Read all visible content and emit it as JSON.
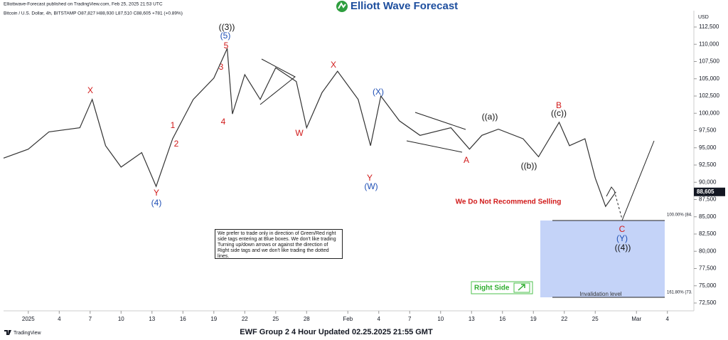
{
  "header": {
    "published": "Elliottwave-Forecast published on TradingView.com, Feb 25, 2025 21:53 UTC",
    "logo": "Elliott Wave Forecast"
  },
  "chart_data": {
    "type": "line",
    "symbol": "Bitcoin / U.S. Dollar, 4h, BITSTAMP O87,827 H88,930 L87,510 C88,605 +781 (+0.89%)",
    "currency": "USD",
    "x": [
      -2.4,
      0,
      2,
      5,
      6.2,
      7.5,
      9,
      11,
      12.4,
      14,
      16,
      18,
      19.3,
      19.8,
      21,
      22.5,
      24,
      26,
      27,
      28.5,
      30,
      32,
      33.2,
      34.2,
      36,
      38,
      41,
      42.8,
      44,
      45.6,
      48,
      49.5,
      51.5,
      52.5,
      54,
      55,
      56,
      57
    ],
    "values": [
      93500,
      94800,
      97300,
      97900,
      102000,
      95300,
      92200,
      94300,
      89400,
      96300,
      102000,
      105100,
      109400,
      99900,
      105600,
      102000,
      106600,
      104600,
      97900,
      103000,
      106100,
      102000,
      95300,
      102500,
      98900,
      96800,
      97900,
      94800,
      96800,
      97700,
      96300,
      93700,
      98700,
      95300,
      96300,
      90600,
      86500,
      88605
    ],
    "color": "#333333",
    "xlim": [
      -2.4,
      64.5
    ],
    "ylim": [
      71470,
      114560
    ],
    "xticks": [
      {
        "value": 0,
        "label": "2025"
      },
      {
        "value": 3,
        "label": "4"
      },
      {
        "value": 6,
        "label": "7"
      },
      {
        "value": 9,
        "label": "10"
      },
      {
        "value": 12,
        "label": "13"
      },
      {
        "value": 15,
        "label": "16"
      },
      {
        "value": 18,
        "label": "19"
      },
      {
        "value": 21,
        "label": "22"
      },
      {
        "value": 24,
        "label": "25"
      },
      {
        "value": 27,
        "label": "28"
      },
      {
        "value": 31,
        "label": "Feb"
      },
      {
        "value": 34,
        "label": "4"
      },
      {
        "value": 37,
        "label": "7"
      },
      {
        "value": 40,
        "label": "10"
      },
      {
        "value": 43,
        "label": "13"
      },
      {
        "value": 46,
        "label": "16"
      },
      {
        "value": 49,
        "label": "19"
      },
      {
        "value": 52,
        "label": "22"
      },
      {
        "value": 55,
        "label": "25"
      },
      {
        "value": 59,
        "label": "Mar"
      },
      {
        "value": 62,
        "label": "4"
      }
    ],
    "yticks": [
      {
        "value": 72500,
        "label": "72,500"
      },
      {
        "value": 75000,
        "label": "75,000"
      },
      {
        "value": 77500,
        "label": "77,500"
      },
      {
        "value": 80000,
        "label": "80,000"
      },
      {
        "value": 82500,
        "label": "82,500"
      },
      {
        "value": 85000,
        "label": "85,000"
      },
      {
        "value": 87500,
        "label": "87,500"
      },
      {
        "value": 90000,
        "label": "90,000"
      },
      {
        "value": 92500,
        "label": "92,500"
      },
      {
        "value": 95000,
        "label": "95,000"
      },
      {
        "value": 97500,
        "label": "97,500"
      },
      {
        "value": 100000,
        "label": "100,000"
      },
      {
        "value": 102500,
        "label": "102,500"
      },
      {
        "value": 105000,
        "label": "105,000"
      },
      {
        "value": 107500,
        "label": "107,500"
      },
      {
        "value": 110000,
        "label": "110,000"
      },
      {
        "value": 112500,
        "label": "112,500"
      }
    ],
    "grid": false,
    "last_price": {
      "value": 88605,
      "label": "88,605"
    },
    "annotations": [
      "X",
      "Y",
      "(4)",
      "1",
      "2",
      "3",
      "4",
      "5",
      "(5)",
      "((3))",
      "W",
      "X",
      "Y",
      "(W)",
      "(X)",
      "A",
      "((a))",
      "((b))",
      "B",
      "((c))",
      "C",
      "(Y)",
      "((4))"
    ],
    "warning": "We Do Not Recommend Selling",
    "fib_levels": [
      "100.00% (84.",
      "161.80% (73."
    ],
    "zone_label": "Invalidation level",
    "right_side": "Right Side",
    "note": "We prefer to trade only in direction of Green/Red right side tags entering at Blue boxes. We don't like trading Turning up/down arrows or against the direction of Right side tags and we don't like trading the dotted lines."
  },
  "footer": {
    "caption": "EWF Group 2 4 Hour Updated 02.25.2025 21:55 GMT",
    "brand": "TradingView"
  }
}
